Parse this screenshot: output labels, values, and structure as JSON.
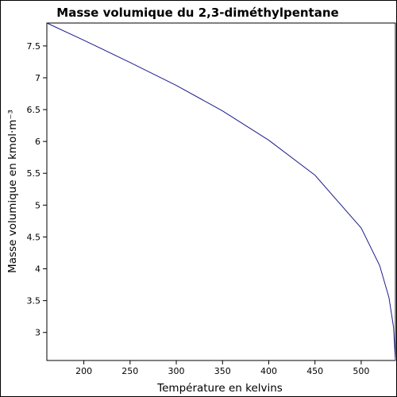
{
  "chart_data": {
    "type": "line",
    "title": "Masse volumique du 2,3-diméthylpentane",
    "xlabel": "Température en kelvins",
    "ylabel": "Masse volumique en kmol·m⁻³",
    "xlim": [
      160,
      537
    ],
    "ylim": [
      2.56,
      7.86
    ],
    "xticks": [
      200,
      250,
      300,
      350,
      400,
      450,
      500
    ],
    "yticks": [
      3,
      3.5,
      4,
      4.5,
      5,
      5.5,
      6,
      6.5,
      7,
      7.5
    ],
    "grid": false,
    "series": [
      {
        "color": "#1c1c8c",
        "x": [
          160,
          200,
          250,
          300,
          350,
          400,
          450,
          500,
          520,
          530,
          535,
          537
        ],
        "y": [
          7.86,
          7.59,
          7.24,
          6.88,
          6.48,
          6.02,
          5.47,
          4.64,
          4.05,
          3.55,
          3.08,
          2.56
        ]
      }
    ]
  }
}
